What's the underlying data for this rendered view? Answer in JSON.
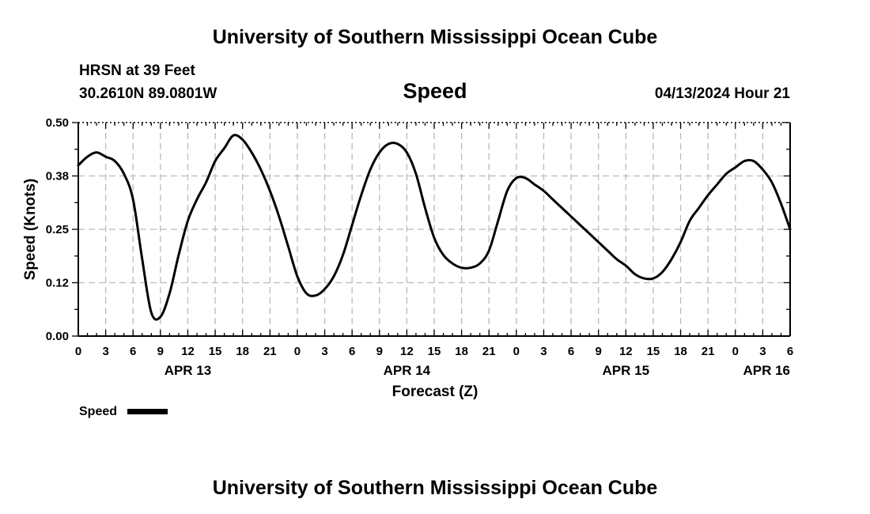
{
  "header": {
    "title": "University of Southern Mississippi Ocean Cube",
    "station": "HRSN at 39 Feet",
    "coords": "30.2610N  89.0801W",
    "datetime": "04/13/2024 Hour 21"
  },
  "footer": {
    "title": "University of Southern Mississippi Ocean Cube"
  },
  "chart_data": {
    "type": "line",
    "title": "Speed",
    "xlabel": "Forecast (Z)",
    "ylabel": "Speed (Knots)",
    "xlim": [
      0,
      78
    ],
    "ylim": [
      0,
      0.5
    ],
    "yticks": [
      "0.00",
      "0.12",
      "0.25",
      "0.38",
      "0.50"
    ],
    "ytick_values": [
      0,
      0.125,
      0.25,
      0.375,
      0.5
    ],
    "xtick_labels": [
      "0",
      "3",
      "6",
      "9",
      "12",
      "15",
      "18",
      "21",
      "0",
      "3",
      "6",
      "9",
      "12",
      "15",
      "18",
      "21",
      "0",
      "3",
      "6",
      "9",
      "12",
      "15",
      "18",
      "21",
      "0",
      "3",
      "6"
    ],
    "date_labels": [
      {
        "label": "APR 13",
        "hour": 12
      },
      {
        "label": "APR 14",
        "hour": 36
      },
      {
        "label": "APR 15",
        "hour": 60
      },
      {
        "label": "APR 16",
        "hour": 78
      }
    ],
    "grid": true,
    "legend": "bottom-left",
    "series": [
      {
        "name": "Speed",
        "color": "#000000",
        "x": [
          0,
          1,
          2,
          3,
          4,
          5,
          6,
          7,
          8,
          9,
          10,
          11,
          12,
          13,
          14,
          15,
          16,
          17,
          18,
          19,
          20,
          21,
          22,
          23,
          24,
          25,
          26,
          27,
          28,
          29,
          30,
          31,
          32,
          33,
          34,
          35,
          36,
          37,
          38,
          39,
          40,
          41,
          42,
          43,
          44,
          45,
          46,
          47,
          48,
          49,
          50,
          51,
          52,
          53,
          54,
          55,
          56,
          57,
          58,
          59,
          60,
          61,
          62,
          63,
          64,
          65,
          66,
          67,
          68,
          69,
          70,
          71,
          72,
          73,
          74,
          75,
          76,
          77,
          78
        ],
        "y": [
          0.4,
          0.42,
          0.43,
          0.42,
          0.41,
          0.38,
          0.32,
          0.18,
          0.055,
          0.045,
          0.1,
          0.19,
          0.27,
          0.32,
          0.36,
          0.41,
          0.44,
          0.47,
          0.46,
          0.43,
          0.39,
          0.34,
          0.28,
          0.21,
          0.14,
          0.1,
          0.095,
          0.11,
          0.14,
          0.19,
          0.26,
          0.33,
          0.39,
          0.43,
          0.45,
          0.45,
          0.43,
          0.38,
          0.3,
          0.23,
          0.19,
          0.17,
          0.16,
          0.16,
          0.17,
          0.2,
          0.27,
          0.34,
          0.37,
          0.37,
          0.355,
          0.34,
          0.32,
          0.3,
          0.28,
          0.26,
          0.24,
          0.22,
          0.2,
          0.18,
          0.165,
          0.145,
          0.135,
          0.135,
          0.15,
          0.18,
          0.22,
          0.27,
          0.3,
          0.33,
          0.355,
          0.38,
          0.395,
          0.41,
          0.41,
          0.39,
          0.36,
          0.31,
          0.25
        ]
      }
    ]
  }
}
